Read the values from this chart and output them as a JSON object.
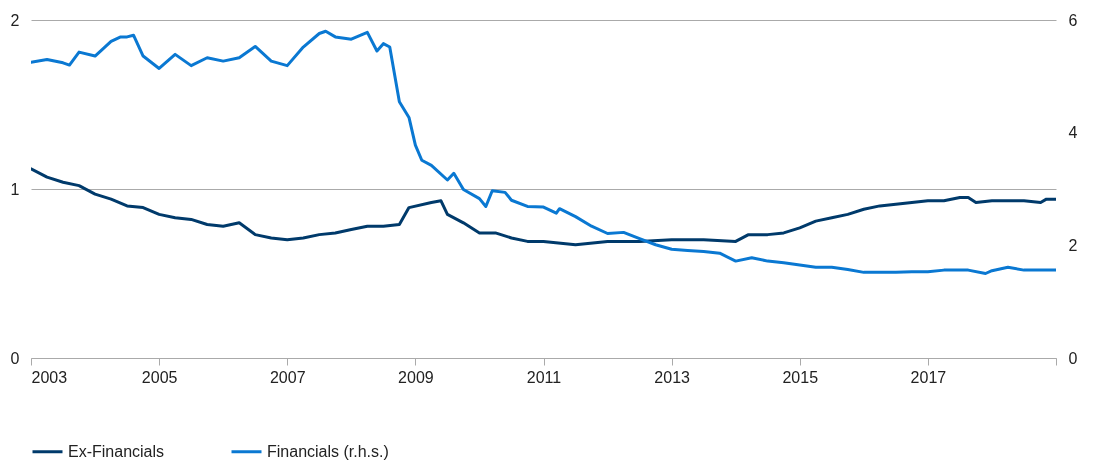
{
  "chart_data": {
    "type": "line",
    "xlim": [
      2003,
      2019
    ],
    "xticks": [
      2003,
      2005,
      2007,
      2009,
      2011,
      2013,
      2015,
      2017,
      {
        "value": 2019,
        "label": null
      }
    ],
    "ylim": [
      0,
      2
    ],
    "yticks": [
      0,
      1,
      2
    ],
    "y2lim": [
      0,
      6
    ],
    "y2ticks": [
      0,
      2,
      4,
      6
    ],
    "grid": "y",
    "legend": "bottom",
    "series": [
      {
        "name": "Ex-Financials",
        "color": "#003a6b",
        "x": [
          2003.0,
          2003.25,
          2003.5,
          2003.75,
          2004.0,
          2004.25,
          2004.5,
          2004.75,
          2005.0,
          2005.25,
          2005.5,
          2005.75,
          2006.0,
          2006.25,
          2006.5,
          2006.75,
          2007.0,
          2007.25,
          2007.5,
          2007.75,
          2008.0,
          2008.25,
          2008.5,
          2008.75,
          2008.9,
          2009.25,
          2009.4,
          2009.5,
          2009.75,
          2010.0,
          2010.25,
          2010.5,
          2010.75,
          2011.0,
          2011.5,
          2012.0,
          2012.5,
          2013.0,
          2013.5,
          2014.0,
          2014.2,
          2014.5,
          2014.75,
          2015.0,
          2015.25,
          2015.5,
          2015.75,
          2016.0,
          2016.25,
          2016.5,
          2016.75,
          2017.0,
          2017.25,
          2017.5,
          2017.63,
          2017.75,
          2018.0,
          2018.25,
          2018.5,
          2018.76,
          2018.85,
          2019.0
        ],
        "values": [
          1.12,
          1.07,
          1.04,
          1.02,
          0.97,
          0.94,
          0.9,
          0.89,
          0.85,
          0.83,
          0.82,
          0.79,
          0.78,
          0.8,
          0.73,
          0.71,
          0.7,
          0.71,
          0.73,
          0.74,
          0.76,
          0.78,
          0.78,
          0.79,
          0.89,
          0.92,
          0.93,
          0.85,
          0.8,
          0.74,
          0.74,
          0.71,
          0.69,
          0.69,
          0.67,
          0.69,
          0.69,
          0.7,
          0.7,
          0.69,
          0.73,
          0.73,
          0.74,
          0.77,
          0.81,
          0.83,
          0.85,
          0.88,
          0.9,
          0.91,
          0.92,
          0.93,
          0.93,
          0.95,
          0.95,
          0.92,
          0.93,
          0.93,
          0.93,
          0.92,
          0.94,
          0.94
        ]
      },
      {
        "name": "Financials (r.h.s.)",
        "color": "#0a78d2",
        "axis": "y2",
        "x": [
          2003.0,
          2003.25,
          2003.5,
          2003.6,
          2003.75,
          2004.0,
          2004.25,
          2004.4,
          2004.5,
          2004.6,
          2004.75,
          2005.0,
          2005.25,
          2005.5,
          2005.75,
          2006.0,
          2006.25,
          2006.5,
          2006.75,
          2007.0,
          2007.25,
          2007.5,
          2007.6,
          2007.75,
          2008.0,
          2008.25,
          2008.4,
          2008.5,
          2008.6,
          2008.75,
          2008.9,
          2009.0,
          2009.1,
          2009.25,
          2009.5,
          2009.6,
          2009.75,
          2010.0,
          2010.1,
          2010.2,
          2010.4,
          2010.5,
          2010.75,
          2011.0,
          2011.2,
          2011.25,
          2011.5,
          2011.75,
          2012.0,
          2012.25,
          2012.5,
          2012.75,
          2013.0,
          2013.25,
          2013.5,
          2013.75,
          2014.0,
          2014.25,
          2014.5,
          2014.75,
          2015.0,
          2015.25,
          2015.5,
          2015.75,
          2016.0,
          2016.5,
          2016.75,
          2017.0,
          2017.25,
          2017.63,
          2017.9,
          2018.0,
          2018.25,
          2018.5,
          2018.75,
          2019.0
        ],
        "values": [
          5.25,
          5.3,
          5.24,
          5.2,
          5.43,
          5.36,
          5.62,
          5.7,
          5.7,
          5.73,
          5.36,
          5.14,
          5.39,
          5.19,
          5.33,
          5.27,
          5.33,
          5.53,
          5.27,
          5.19,
          5.52,
          5.76,
          5.8,
          5.7,
          5.66,
          5.78,
          5.45,
          5.58,
          5.52,
          4.55,
          4.27,
          3.78,
          3.51,
          3.42,
          3.16,
          3.28,
          2.99,
          2.83,
          2.69,
          2.97,
          2.94,
          2.8,
          2.69,
          2.68,
          2.57,
          2.65,
          2.51,
          2.34,
          2.21,
          2.23,
          2.12,
          2.01,
          1.93,
          1.91,
          1.89,
          1.86,
          1.72,
          1.78,
          1.72,
          1.69,
          1.65,
          1.61,
          1.61,
          1.57,
          1.52,
          1.52,
          1.53,
          1.53,
          1.56,
          1.56,
          1.5,
          1.55,
          1.61,
          1.56,
          1.56,
          1.56
        ]
      }
    ]
  }
}
